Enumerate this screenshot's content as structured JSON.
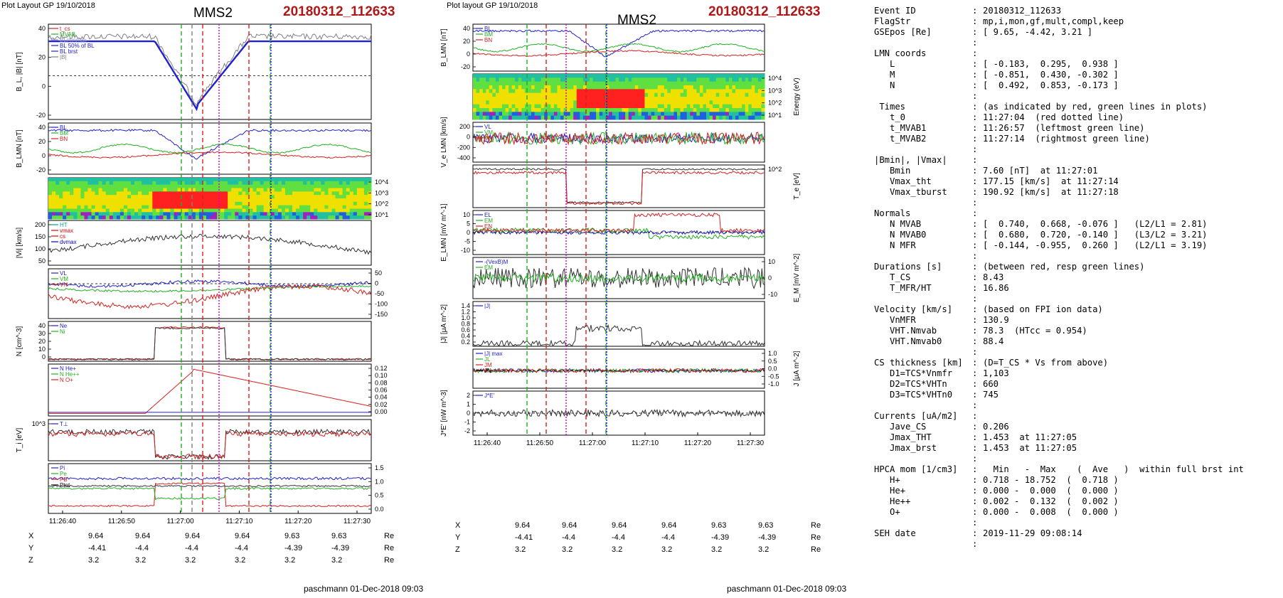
{
  "left": {
    "header": "Plot Layout GP 19/10/2018",
    "spacecraft": "MMS2",
    "event": "20180312_112633",
    "footer": "paschmann 01-Dec-2018 09:03",
    "time_labels": [
      "11:26:40",
      "11:26:50",
      "11:27:00",
      "11:27:10",
      "11:27:20",
      "11:27:30"
    ],
    "marker_times": {
      "green": [
        "11:26:57",
        "11:27:14"
      ],
      "red": [
        "11:27:01",
        "11:27:09"
      ],
      "magenta": [
        "11:27:04",
        "11:27:05"
      ],
      "blue": [
        "11:27:14"
      ]
    },
    "pos_table": {
      "rows": [
        {
          "label": "X",
          "values": [
            "9.64",
            "9.64",
            "9.64",
            "9.64",
            "9.63",
            "9.63"
          ],
          "unit": "Re"
        },
        {
          "label": "Y",
          "values": [
            "-4.41",
            "-4.4",
            "-4.4",
            "-4.4",
            "-4.39",
            "-4.39"
          ],
          "unit": "Re"
        },
        {
          "label": "Z",
          "values": [
            "3.2",
            "3.2",
            "3.2",
            "3.2",
            "3.2",
            "3.2"
          ],
          "unit": "Re"
        }
      ]
    },
    "panels": [
      {
        "ylabel": "B_L, |B| [nT]",
        "ticks": [
          "40",
          "20",
          "0",
          "-20"
        ],
        "legend": [
          "t_cs",
          "MVAB",
          "BLminmax",
          "BL 50% of BL",
          "BL brst",
          "|B|"
        ],
        "legend_colors": [
          "#d62020",
          "#20b020",
          "#9090c0",
          "#2020d0",
          "#2020d0",
          "#808080"
        ]
      },
      {
        "ylabel": "B_LMN [nT]",
        "ticks": [
          "40",
          "20",
          "0",
          "-20"
        ],
        "legend": [
          "BL",
          "BM",
          "BN"
        ]
      },
      {
        "ylabel": "Energy (eV)",
        "ticks": [
          "10^4",
          "10^3",
          "10^2",
          "10^1"
        ]
      },
      {
        "ylabel": "|Vi| [km/s]",
        "ticks": [
          "200",
          "150",
          "100",
          "50"
        ],
        "legend": [
          "HT",
          "vmax",
          "cs",
          "dvmax"
        ],
        "legend_colors": [
          "#00a0a0",
          "#e00000",
          "#e00000",
          "#0000e0"
        ]
      },
      {
        "ylabel": "V_i LMN [km/s]",
        "ticks": [
          "50",
          "0",
          "-50",
          "-100",
          "-150"
        ],
        "legend": [
          "VL",
          "VM",
          "VN"
        ]
      },
      {
        "ylabel": "N [cm^-3]",
        "ticks": [
          "40",
          "30",
          "20",
          "10",
          "0"
        ],
        "legend": [
          "Ne",
          "Ni"
        ]
      },
      {
        "ylabel": "N_i [cm^-3]",
        "ticks": [
          "0.12",
          "0.10",
          "0.08",
          "0.06",
          "0.04",
          "0.02",
          "0.00"
        ],
        "legend": [
          "N He+",
          "N He++",
          "N O+"
        ]
      },
      {
        "ylabel": "T_i [eV]",
        "ticks": [
          "10^3"
        ],
        "legend": [
          "T⊥"
        ]
      },
      {
        "ylabel": "P [nPa]",
        "ticks": [
          "1.5",
          "1.0",
          "0.5",
          "0.0"
        ],
        "legend": [
          "Pi",
          "Pe",
          "PB",
          "Ptot"
        ]
      }
    ]
  },
  "mid": {
    "header": "Plot layout GP 19/10/2018",
    "spacecraft": "MMS2",
    "event": "20180312_112633",
    "footer": "paschmann 01-Dec-2018 09:03",
    "time_labels": [
      "11:26:40",
      "11:26:50",
      "11:27:00",
      "11:27:10",
      "11:27:20",
      "11:27:30"
    ],
    "pos_table": {
      "rows": [
        {
          "label": "X",
          "values": [
            "9.64",
            "9.64",
            "9.64",
            "9.64",
            "9.63",
            "9.63"
          ],
          "unit": "Re"
        },
        {
          "label": "Y",
          "values": [
            "-4.41",
            "-4.4",
            "-4.4",
            "-4.4",
            "-4.39",
            "-4.39"
          ],
          "unit": "Re"
        },
        {
          "label": "Z",
          "values": [
            "3.2",
            "3.2",
            "3.2",
            "3.2",
            "3.2",
            "3.2"
          ],
          "unit": "Re"
        }
      ]
    },
    "panels": [
      {
        "ylabel": "B_LMN [nT]",
        "ticks": [
          "40",
          "20",
          "0",
          "-20"
        ],
        "legend": [
          "BL",
          "BM",
          "BN"
        ]
      },
      {
        "ylabel": "Energy (eV)",
        "ticks": [
          "10^4",
          "10^3",
          "10^2",
          "10^1"
        ]
      },
      {
        "ylabel": "V_e LMN [km/s]",
        "ticks": [
          "200",
          "0",
          "-200",
          "-400"
        ],
        "legend": [
          "VL",
          "VM",
          "VN"
        ]
      },
      {
        "ylabel": "T_e [eV]",
        "ticks": [
          "10^2"
        ]
      },
      {
        "ylabel": "E_LMN [mV m^-1]",
        "ticks": [
          "10",
          "5",
          "0",
          "-5",
          "-10"
        ],
        "legend": [
          "EL",
          "EM",
          "EN"
        ]
      },
      {
        "ylabel": "E_M [mV m^-2]",
        "ticks": [
          "10",
          "0",
          "-10"
        ],
        "legend": [
          "-(VexB)M",
          "EM"
        ]
      },
      {
        "ylabel": "|J| [μA m^-2]",
        "ticks": [
          "1.4",
          "1.2",
          "1.0",
          "0.8",
          "0.6",
          "0.4",
          "0.2"
        ],
        "legend": [
          "|J|"
        ]
      },
      {
        "ylabel": "J [μA m^-2]",
        "ticks": [
          "1.0",
          "0.5",
          "0.0",
          "-0.5",
          "-1.0"
        ],
        "legend": [
          "|J| max",
          "JL",
          "JM",
          "JN"
        ]
      },
      {
        "ylabel": "J*E' [nW m^-3]",
        "ticks": [
          "2",
          "1",
          "0",
          "-1",
          "-2"
        ],
        "legend": [
          "J*E'"
        ]
      }
    ]
  },
  "info": [
    {
      "k": "Event ID",
      "v": "20180312_112633"
    },
    {
      "k": "FlagStr",
      "v": "mp,i,mon,gf,mult,compl,keep"
    },
    {
      "k": "GSEpos [Re]",
      "v": "[ 9.65, -4.42, 3.21 ]"
    },
    {
      "k": "",
      "v": ""
    },
    {
      "k": "LMN coords",
      "v": ""
    },
    {
      "k": "   L",
      "v": "[ -0.183,  0.295,  0.938 ]"
    },
    {
      "k": "   M",
      "v": "[ -0.851,  0.430, -0.302 ]"
    },
    {
      "k": "   N",
      "v": "[  0.492,  0.853, -0.173 ]"
    },
    {
      "k": "",
      "v": ""
    },
    {
      "k": " Times",
      "v": "(as indicated by red, green lines in plots)"
    },
    {
      "k": "   t_0",
      "v": "11:27:04  (red dotted line)"
    },
    {
      "k": "   t_MVAB1",
      "v": "11:26:57  (leftmost green line)"
    },
    {
      "k": "   t_MVAB2",
      "v": "11:27:14  (rightmost green line)"
    },
    {
      "k": "",
      "v": ""
    },
    {
      "k": "|Bmin|, |Vmax|",
      "v": ""
    },
    {
      "k": "   Bmin",
      "v": "7.60 [nT]  at 11:27:01"
    },
    {
      "k": "   Vmax_tht",
      "v": "177.15 [km/s]  at 11:27:14"
    },
    {
      "k": "   Vmax_tburst",
      "v": "190.92 [km/s]  at 11:27:18"
    },
    {
      "k": "",
      "v": ""
    },
    {
      "k": "Normals",
      "v": ""
    },
    {
      "k": "   N MVAB",
      "v": "[  0.740,  0.668, -0.076 ]   (L2/L1 = 2.81)"
    },
    {
      "k": "   N MVAB0",
      "v": "[  0.680,  0.720, -0.140 ]   (L3/L2 = 3.21)"
    },
    {
      "k": "   N MFR",
      "v": "[ -0.144, -0.955,  0.260 ]   (L2/L1 = 3.19)"
    },
    {
      "k": "",
      "v": ""
    },
    {
      "k": "Durations [s]",
      "v": "(between red, resp green lines)"
    },
    {
      "k": "   T_CS",
      "v": "8.43"
    },
    {
      "k": "   T_MFR/HT",
      "v": "16.86"
    },
    {
      "k": "",
      "v": ""
    },
    {
      "k": "Velocity [km/s]",
      "v": "(based on FPI ion data)"
    },
    {
      "k": "   VnMFR",
      "v": "130.9"
    },
    {
      "k": "   VHT.Nmvab",
      "v": "78.3  (HTcc = 0.954)"
    },
    {
      "k": "   VHT.Nmvab0",
      "v": "88.4"
    },
    {
      "k": "",
      "v": ""
    },
    {
      "k": "CS thickness [km]",
      "v": "(D=T_CS * Vs from above)"
    },
    {
      "k": "   D1=TCS*Vnmfr",
      "v": "1,103"
    },
    {
      "k": "   D2=TCS*VHTn",
      "v": "660"
    },
    {
      "k": "   D3=TCS*VHTn0",
      "v": "745"
    },
    {
      "k": "",
      "v": ""
    },
    {
      "k": "Currents [uA/m2]",
      "v": ""
    },
    {
      "k": "   Jave_CS",
      "v": "0.206"
    },
    {
      "k": "   Jmax_THT",
      "v": "1.453  at 11:27:05"
    },
    {
      "k": "   Jmax_brst",
      "v": "1.453  at 11:27:05"
    },
    {
      "k": "",
      "v": ""
    },
    {
      "k": "HPCA mom [1/cm3]",
      "v": "  Min   -  Max    (  Ave   )  within full brst int"
    },
    {
      "k": "   H+",
      "v": "0.718 - 18.752  (  0.718 )"
    },
    {
      "k": "   He+",
      "v": "0.000 -  0.000  (  0.000 )"
    },
    {
      "k": "   He++",
      "v": "0.002 -  0.132  (  0.002 )"
    },
    {
      "k": "   O+",
      "v": "0.000 -  0.008  (  0.000 )"
    },
    {
      "k": "",
      "v": ""
    },
    {
      "k": "SEH date",
      "v": "2019-11-29 09:08:14"
    },
    {
      "k": "",
      "v": ""
    }
  ],
  "chart_data": [
    {
      "type": "line",
      "title": "MMS2 20180312_112633 (left column)",
      "x": [
        "11:26:40",
        "11:26:50",
        "11:27:00",
        "11:27:10",
        "11:27:20",
        "11:27:30"
      ],
      "series": [
        {
          "name": "BL brst",
          "values": [
            47,
            47,
            -5,
            20,
            47,
            48
          ]
        },
        {
          "name": "|Vi|",
          "values": [
            80,
            120,
            165,
            140,
            120,
            55
          ]
        },
        {
          "name": "Ne",
          "values": [
            0,
            0,
            35,
            35,
            0,
            0
          ]
        },
        {
          "name": "N He++",
          "values": [
            0.003,
            0.003,
            0.12,
            0.08,
            0.02,
            0.02
          ]
        }
      ],
      "xlabel": "",
      "ylabel": ""
    },
    {
      "type": "line",
      "title": "MMS2 20180312_112633 (middle column)",
      "x": [
        "11:26:40",
        "11:26:50",
        "11:27:00",
        "11:27:10",
        "11:27:20",
        "11:27:30"
      ],
      "series": [
        {
          "name": "BL",
          "values": [
            42,
            40,
            0,
            15,
            40,
            42
          ]
        },
        {
          "name": "|J|",
          "values": [
            0.05,
            0.05,
            0.5,
            0.8,
            0.05,
            0.05
          ]
        }
      ],
      "xlabel": "",
      "ylabel": ""
    }
  ]
}
